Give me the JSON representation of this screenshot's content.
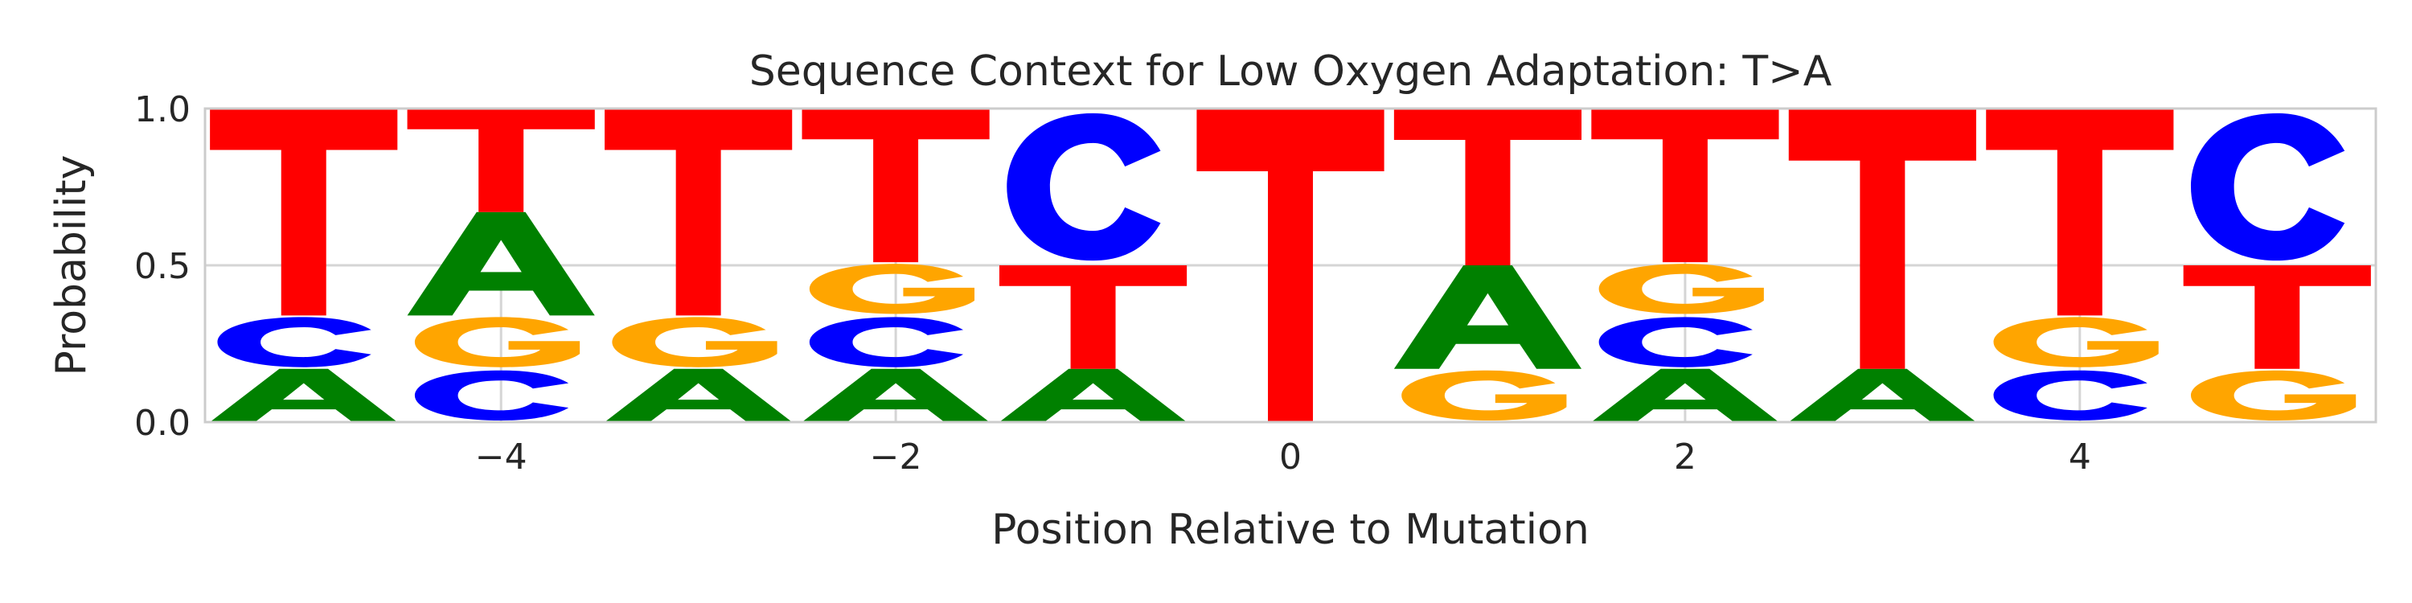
{
  "chart_data": {
    "type": "sequence-logo",
    "title": "Sequence Context for Low Oxygen Adaptation: T>A",
    "xlabel": "Position Relative to Mutation",
    "ylabel": "Probability",
    "xlim": [
      -5.5,
      5.5
    ],
    "ylim": [
      0,
      1
    ],
    "x_ticks": [
      {
        "value": -4,
        "label": "−4"
      },
      {
        "value": -2,
        "label": "−2"
      },
      {
        "value": 0,
        "label": "0"
      },
      {
        "value": 2,
        "label": "2"
      },
      {
        "value": 4,
        "label": "4"
      }
    ],
    "y_ticks": [
      {
        "value": 0,
        "label": "0.0"
      },
      {
        "value": 0.5,
        "label": "0.5"
      },
      {
        "value": 1,
        "label": "1.0"
      }
    ],
    "grid": true,
    "colors": {
      "A": "#008000",
      "C": "#0000ff",
      "G": "#ffa500",
      "T": "#ff0000"
    },
    "positions": [
      {
        "pos": -5,
        "stack": [
          {
            "base": "A",
            "p": 0.17
          },
          {
            "base": "C",
            "p": 0.17
          },
          {
            "base": "T",
            "p": 0.66
          }
        ]
      },
      {
        "pos": -4,
        "stack": [
          {
            "base": "C",
            "p": 0.17
          },
          {
            "base": "G",
            "p": 0.17
          },
          {
            "base": "A",
            "p": 0.33
          },
          {
            "base": "T",
            "p": 0.33
          }
        ]
      },
      {
        "pos": -3,
        "stack": [
          {
            "base": "A",
            "p": 0.17
          },
          {
            "base": "G",
            "p": 0.17
          },
          {
            "base": "T",
            "p": 0.66
          }
        ]
      },
      {
        "pos": -2,
        "stack": [
          {
            "base": "A",
            "p": 0.17
          },
          {
            "base": "C",
            "p": 0.17
          },
          {
            "base": "G",
            "p": 0.17
          },
          {
            "base": "T",
            "p": 0.49
          }
        ]
      },
      {
        "pos": -1,
        "stack": [
          {
            "base": "A",
            "p": 0.17
          },
          {
            "base": "T",
            "p": 0.33
          },
          {
            "base": "C",
            "p": 0.5
          }
        ]
      },
      {
        "pos": 0,
        "stack": [
          {
            "base": "T",
            "p": 1.0
          }
        ]
      },
      {
        "pos": 1,
        "stack": [
          {
            "base": "G",
            "p": 0.17
          },
          {
            "base": "A",
            "p": 0.33
          },
          {
            "base": "T",
            "p": 0.5
          }
        ]
      },
      {
        "pos": 2,
        "stack": [
          {
            "base": "A",
            "p": 0.17
          },
          {
            "base": "C",
            "p": 0.17
          },
          {
            "base": "G",
            "p": 0.17
          },
          {
            "base": "T",
            "p": 0.49
          }
        ]
      },
      {
        "pos": 3,
        "stack": [
          {
            "base": "A",
            "p": 0.17
          },
          {
            "base": "T",
            "p": 0.83
          }
        ]
      },
      {
        "pos": 4,
        "stack": [
          {
            "base": "C",
            "p": 0.17
          },
          {
            "base": "G",
            "p": 0.17
          },
          {
            "base": "T",
            "p": 0.66
          }
        ]
      },
      {
        "pos": 5,
        "stack": [
          {
            "base": "G",
            "p": 0.17
          },
          {
            "base": "T",
            "p": 0.33
          },
          {
            "base": "C",
            "p": 0.5
          }
        ]
      }
    ]
  }
}
